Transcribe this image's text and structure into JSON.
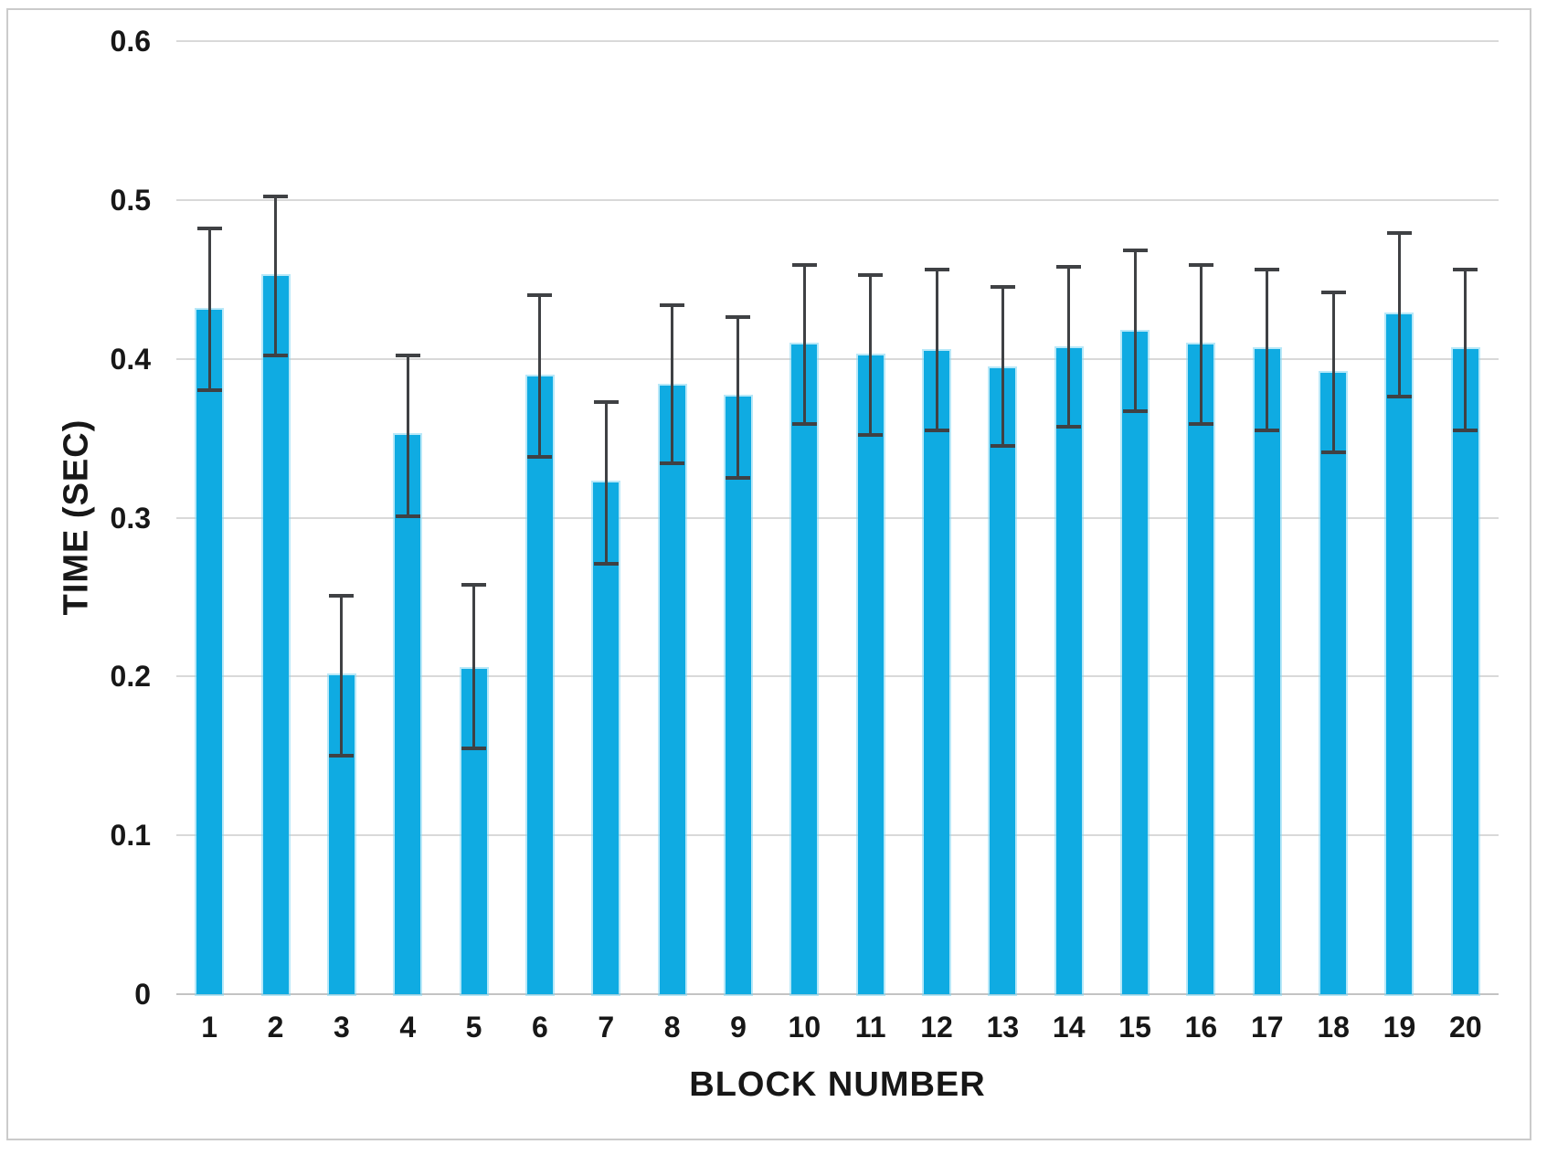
{
  "chart_data": {
    "type": "bar",
    "title": "",
    "xlabel": "BLOCK NUMBER",
    "ylabel": "TIME (SEC)",
    "categories": [
      "1",
      "2",
      "3",
      "4",
      "5",
      "6",
      "7",
      "8",
      "9",
      "10",
      "11",
      "12",
      "13",
      "14",
      "15",
      "16",
      "17",
      "18",
      "19",
      "20"
    ],
    "values": [
      0.431,
      0.452,
      0.201,
      0.352,
      0.205,
      0.389,
      0.322,
      0.383,
      0.376,
      0.409,
      0.402,
      0.405,
      0.394,
      0.407,
      0.417,
      0.409,
      0.406,
      0.391,
      0.428,
      0.406
    ],
    "error_upper": [
      0.482,
      0.502,
      0.251,
      0.402,
      0.258,
      0.44,
      0.373,
      0.434,
      0.426,
      0.459,
      0.453,
      0.456,
      0.445,
      0.458,
      0.468,
      0.459,
      0.456,
      0.442,
      0.479,
      0.456
    ],
    "error_lower": [
      0.38,
      0.402,
      0.15,
      0.301,
      0.155,
      0.338,
      0.271,
      0.334,
      0.325,
      0.359,
      0.352,
      0.355,
      0.345,
      0.357,
      0.367,
      0.359,
      0.355,
      0.341,
      0.376,
      0.355
    ],
    "ylim": [
      0,
      0.6
    ],
    "yticks": [
      0,
      0.1,
      0.2,
      0.3,
      0.4,
      0.5,
      0.6
    ],
    "ytick_labels": [
      "0",
      "0.1",
      "0.2",
      "0.3",
      "0.4",
      "0.5",
      "0.6"
    ],
    "grid": true,
    "legend_position": "none",
    "bar_color": "#0fabe2",
    "error_bar_color": "#3f4144",
    "gridline_color": "#d9d9d9",
    "frame_border_color": "#cbcbcb"
  }
}
